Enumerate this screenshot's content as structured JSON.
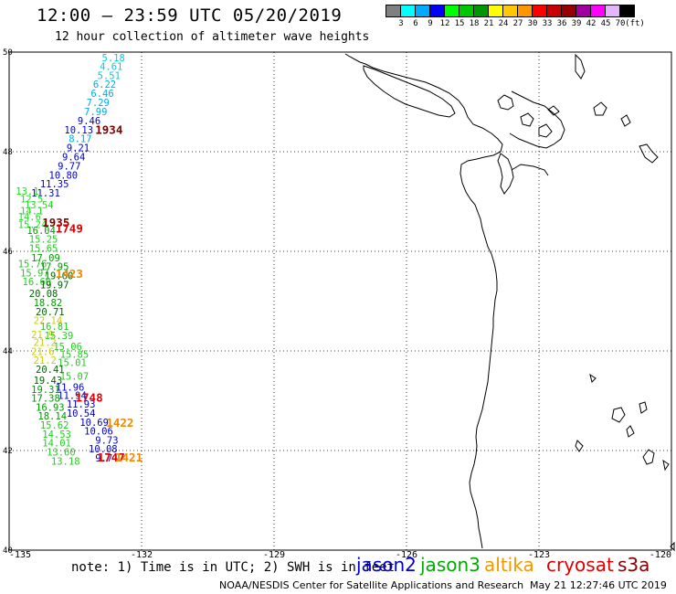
{
  "header": {
    "title": "12:00 – 23:59 UTC 05/20/2019",
    "subtitle": "12 hour collection of altimeter wave heights"
  },
  "colorbar": {
    "colors": [
      "#808080",
      "#00ffff",
      "#00aaff",
      "#0000ff",
      "#00ff00",
      "#00c800",
      "#009600",
      "#ffff00",
      "#ffc800",
      "#ff9600",
      "#ff0000",
      "#c80000",
      "#960000",
      "#a000a0",
      "#ff00ff",
      "#e6b4ff",
      "#000000"
    ],
    "labels": [
      "3",
      "6",
      "9",
      "12",
      "15",
      "18",
      "21",
      "24",
      "27",
      "30",
      "33",
      "36",
      "39",
      "42",
      "45",
      "70",
      "(ft)"
    ]
  },
  "map": {
    "lat_labels": [
      {
        "value": "50",
        "lat": 50
      },
      {
        "value": "48",
        "lat": 48
      },
      {
        "value": "46",
        "lat": 46
      },
      {
        "value": "44",
        "lat": 44
      },
      {
        "value": "42",
        "lat": 42
      },
      {
        "value": "40",
        "lat": 40
      }
    ],
    "lon_labels": [
      {
        "value": "-135",
        "lon": -135
      },
      {
        "value": "-132",
        "lon": -132
      },
      {
        "value": "-129",
        "lon": -129
      },
      {
        "value": "-126",
        "lon": -126
      },
      {
        "value": "-123",
        "lon": -123
      },
      {
        "value": "-120",
        "lon": -120
      }
    ],
    "wave_heights": [
      {
        "v": "5.18",
        "lon": -132.9,
        "lat": 49.82,
        "c": "#00ccdd"
      },
      {
        "v": "4.61",
        "lon": -132.95,
        "lat": 49.64,
        "c": "#00ccdd"
      },
      {
        "v": "5.51",
        "lon": -133.0,
        "lat": 49.46,
        "c": "#00ccdd"
      },
      {
        "v": "6.22",
        "lon": -133.1,
        "lat": 49.28,
        "c": "#00aaee"
      },
      {
        "v": "6.46",
        "lon": -133.15,
        "lat": 49.1,
        "c": "#00aaee"
      },
      {
        "v": "7.29",
        "lon": -133.25,
        "lat": 48.92,
        "c": "#00aaee"
      },
      {
        "v": "7.99",
        "lon": -133.3,
        "lat": 48.73,
        "c": "#00aaee"
      },
      {
        "v": "9.46",
        "lon": -133.45,
        "lat": 48.55,
        "c": "#0000cc"
      },
      {
        "v": "10.13",
        "lon": -133.75,
        "lat": 48.37,
        "c": "#0000cc"
      },
      {
        "v": "8.17",
        "lon": -133.65,
        "lat": 48.19,
        "c": "#00aaee"
      },
      {
        "v": "9.21",
        "lon": -133.7,
        "lat": 48.01,
        "c": "#0000cc"
      },
      {
        "v": "9.64",
        "lon": -133.8,
        "lat": 47.83,
        "c": "#0000cc"
      },
      {
        "v": "9.77",
        "lon": -133.9,
        "lat": 47.64,
        "c": "#0000cc"
      },
      {
        "v": "10.80",
        "lon": -134.1,
        "lat": 47.46,
        "c": "#0000cc"
      },
      {
        "v": "11.35",
        "lon": -134.3,
        "lat": 47.28,
        "c": "#0000cc"
      },
      {
        "v": "11.31",
        "lon": -134.5,
        "lat": 47.1,
        "c": "#0000cc"
      },
      {
        "v": "13.1",
        "lon": -134.85,
        "lat": 47.14,
        "c": "#22dd22"
      },
      {
        "v": "12.5",
        "lon": -134.75,
        "lat": 46.98,
        "c": "#22dd22"
      },
      {
        "v": "13.54",
        "lon": -134.65,
        "lat": 46.86,
        "c": "#22dd22"
      },
      {
        "v": "14.1",
        "lon": -134.75,
        "lat": 46.74,
        "c": "#22dd22"
      },
      {
        "v": "14.6",
        "lon": -134.8,
        "lat": 46.62,
        "c": "#22dd22"
      },
      {
        "v": "15.24",
        "lon": -134.8,
        "lat": 46.47,
        "c": "#22dd22"
      },
      {
        "v": "16.04",
        "lon": -134.6,
        "lat": 46.35,
        "c": "#009900"
      },
      {
        "v": "15.25",
        "lon": -134.55,
        "lat": 46.17,
        "c": "#22cc22"
      },
      {
        "v": "15.65",
        "lon": -134.55,
        "lat": 45.99,
        "c": "#22cc22"
      },
      {
        "v": "17.09",
        "lon": -134.5,
        "lat": 45.8,
        "c": "#009900"
      },
      {
        "v": "15.76",
        "lon": -134.8,
        "lat": 45.68,
        "c": "#22cc22"
      },
      {
        "v": "17.95",
        "lon": -134.3,
        "lat": 45.62,
        "c": "#009900"
      },
      {
        "v": "15.97",
        "lon": -134.75,
        "lat": 45.5,
        "c": "#22cc22"
      },
      {
        "v": "19.60",
        "lon": -134.2,
        "lat": 45.44,
        "c": "#006600"
      },
      {
        "v": "16.60",
        "lon": -134.7,
        "lat": 45.32,
        "c": "#22cc22"
      },
      {
        "v": "19.97",
        "lon": -134.3,
        "lat": 45.26,
        "c": "#006600"
      },
      {
        "v": "20.08",
        "lon": -134.55,
        "lat": 45.08,
        "c": "#006600"
      },
      {
        "v": "18.82",
        "lon": -134.45,
        "lat": 44.9,
        "c": "#009900"
      },
      {
        "v": "20.71",
        "lon": -134.4,
        "lat": 44.72,
        "c": "#006600"
      },
      {
        "v": "22.14",
        "lon": -134.45,
        "lat": 44.54,
        "c": "#cccc00"
      },
      {
        "v": "16.81",
        "lon": -134.3,
        "lat": 44.42,
        "c": "#22cc22"
      },
      {
        "v": "21.9",
        "lon": -134.5,
        "lat": 44.26,
        "c": "#cccc00"
      },
      {
        "v": "15.39",
        "lon": -134.2,
        "lat": 44.24,
        "c": "#22cc22"
      },
      {
        "v": "21.2",
        "lon": -134.45,
        "lat": 44.1,
        "c": "#cccc00"
      },
      {
        "v": "15.06",
        "lon": -134.0,
        "lat": 44.02,
        "c": "#22cc22"
      },
      {
        "v": "21.6",
        "lon": -134.5,
        "lat": 43.92,
        "c": "#cccc00"
      },
      {
        "v": "15.85",
        "lon": -133.85,
        "lat": 43.86,
        "c": "#22cc22"
      },
      {
        "v": "21.2",
        "lon": -134.45,
        "lat": 43.74,
        "c": "#cccc00"
      },
      {
        "v": "15.01",
        "lon": -133.9,
        "lat": 43.7,
        "c": "#22cc22"
      },
      {
        "v": "20.41",
        "lon": -134.4,
        "lat": 43.56,
        "c": "#006600"
      },
      {
        "v": "15.07",
        "lon": -133.85,
        "lat": 43.42,
        "c": "#22cc22"
      },
      {
        "v": "19.43",
        "lon": -134.45,
        "lat": 43.34,
        "c": "#006600"
      },
      {
        "v": "11.96",
        "lon": -133.95,
        "lat": 43.2,
        "c": "#0000cc"
      },
      {
        "v": "19.31",
        "lon": -134.5,
        "lat": 43.16,
        "c": "#009900"
      },
      {
        "v": "11.94",
        "lon": -133.9,
        "lat": 43.04,
        "c": "#0000cc"
      },
      {
        "v": "17.38",
        "lon": -134.5,
        "lat": 42.98,
        "c": "#009900"
      },
      {
        "v": "11.93",
        "lon": -133.7,
        "lat": 42.86,
        "c": "#0000cc"
      },
      {
        "v": "16.93",
        "lon": -134.4,
        "lat": 42.8,
        "c": "#009900"
      },
      {
        "v": "10.54",
        "lon": -133.7,
        "lat": 42.68,
        "c": "#0000cc"
      },
      {
        "v": "18.14",
        "lon": -134.35,
        "lat": 42.62,
        "c": "#009900"
      },
      {
        "v": "10.69",
        "lon": -133.4,
        "lat": 42.5,
        "c": "#0000cc"
      },
      {
        "v": "15.62",
        "lon": -134.3,
        "lat": 42.44,
        "c": "#22cc22"
      },
      {
        "v": "10.06",
        "lon": -133.3,
        "lat": 42.32,
        "c": "#0000cc"
      },
      {
        "v": "14.53",
        "lon": -134.25,
        "lat": 42.26,
        "c": "#22cc22"
      },
      {
        "v": "9.73",
        "lon": -133.05,
        "lat": 42.14,
        "c": "#0000cc"
      },
      {
        "v": "14.01",
        "lon": -134.25,
        "lat": 42.08,
        "c": "#22cc22"
      },
      {
        "v": "10.08",
        "lon": -133.2,
        "lat": 41.96,
        "c": "#0000cc"
      },
      {
        "v": "13.60",
        "lon": -134.15,
        "lat": 41.9,
        "c": "#22cc22"
      },
      {
        "v": "9.7",
        "lon": -133.05,
        "lat": 41.78,
        "c": "#0000cc"
      },
      {
        "v": "13.18",
        "lon": -134.05,
        "lat": 41.72,
        "c": "#22cc22"
      }
    ],
    "pass_times": [
      {
        "v": "1934",
        "lon": -133.05,
        "lat": 48.36,
        "c": "#800000"
      },
      {
        "v": "1935",
        "lon": -134.25,
        "lat": 46.5,
        "c": "#800000"
      },
      {
        "v": "1749",
        "lon": -133.95,
        "lat": 46.38,
        "c": "#dd0000"
      },
      {
        "v": "1423",
        "lon": -133.95,
        "lat": 45.47,
        "c": "#ee8800"
      },
      {
        "v": "1748",
        "lon": -133.5,
        "lat": 42.98,
        "c": "#dd0000"
      },
      {
        "v": "1422",
        "lon": -132.8,
        "lat": 42.48,
        "c": "#ee8800"
      },
      {
        "v": "1747",
        "lon": -133.0,
        "lat": 41.78,
        "c": "#dd0000"
      },
      {
        "v": "1421",
        "lon": -132.6,
        "lat": 41.78,
        "c": "#ee8800"
      }
    ]
  },
  "note": "note: 1) Time is in UTC; 2) SWH is in feet",
  "legend": [
    {
      "label": "jason2",
      "color": "#0000cc"
    },
    {
      "label": "jason3",
      "color": "#00aa00"
    },
    {
      "label": "altika",
      "color": "#ee9900"
    },
    {
      "label": "cryosat",
      "color": "#dd0000"
    },
    {
      "label": "s3a",
      "color": "#880000"
    }
  ],
  "footer": {
    "agency": "NOAA/NESDIS Center for Satellite Applications and Research",
    "stamp": "May 21 12:27:46 UTC 2019"
  }
}
